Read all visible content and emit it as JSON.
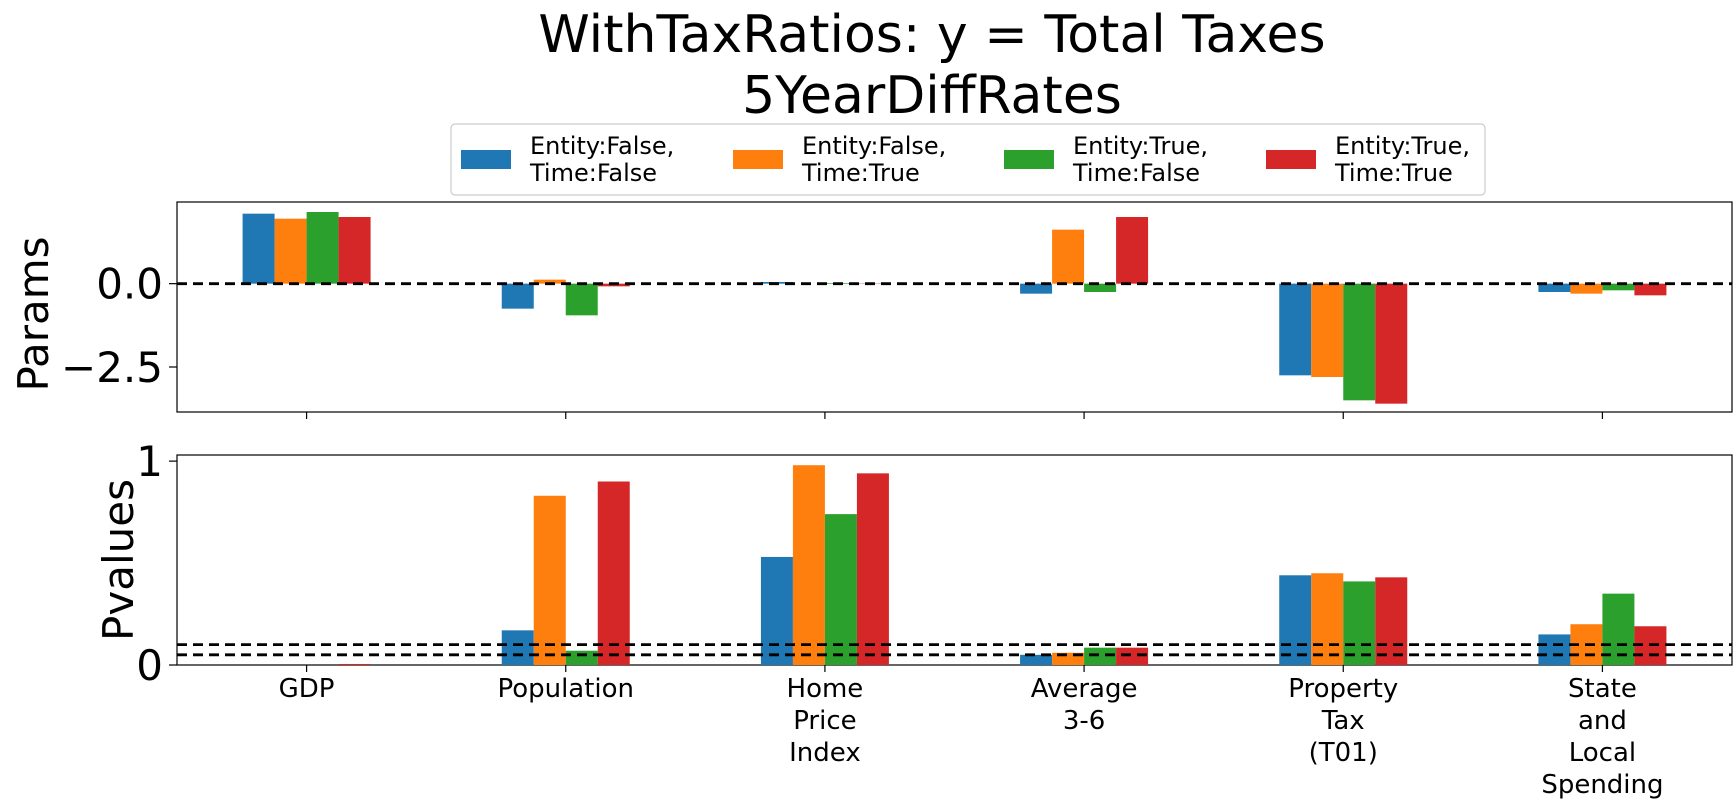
{
  "chart_data": {
    "title_line1": "WithTaxRatios: y = Total Taxes",
    "title_line2": "5YearDiffRates",
    "legend": [
      {
        "line1": "Entity:False,",
        "line2": "Time:False",
        "color": "#1f77b4"
      },
      {
        "line1": "Entity:False,",
        "line2": "Time:True",
        "color": "#ff7f0e"
      },
      {
        "line1": "Entity:True,",
        "line2": "Time:False",
        "color": "#2ca02c"
      },
      {
        "line1": "Entity:True,",
        "line2": "Time:True",
        "color": "#d62728"
      }
    ],
    "categories": [
      [
        "GDP"
      ],
      [
        "Population"
      ],
      [
        "Home",
        "Price",
        "Index"
      ],
      [
        "Average",
        "3-6"
      ],
      [
        "Property",
        "Tax",
        "(T01)"
      ],
      [
        "State",
        "and",
        "Local",
        "Spending"
      ]
    ],
    "params": {
      "type": "bar",
      "ylabel": "Params",
      "ylim": [
        -3.85,
        2.45
      ],
      "yticks": [
        {
          "value": 0.0,
          "label": "0.0"
        },
        {
          "value": -2.5,
          "label": "−2.5"
        }
      ],
      "hline": 0.0,
      "series": [
        {
          "name": "Entity:False, Time:False",
          "values": [
            2.1,
            -0.75,
            0.05,
            -0.3,
            -2.75,
            -0.25
          ]
        },
        {
          "name": "Entity:False, Time:True",
          "values": [
            1.95,
            0.12,
            0.0,
            1.62,
            -2.8,
            -0.3
          ]
        },
        {
          "name": "Entity:True, Time:False",
          "values": [
            2.15,
            -0.95,
            0.02,
            -0.25,
            -3.5,
            -0.2
          ]
        },
        {
          "name": "Entity:True, Time:True",
          "values": [
            2.0,
            -0.08,
            0.01,
            2.0,
            -3.6,
            -0.35
          ]
        }
      ]
    },
    "pvalues": {
      "type": "bar",
      "ylabel": "Pvalues",
      "ylim": [
        0,
        1.03
      ],
      "yticks": [
        {
          "value": 0,
          "label": "0"
        },
        {
          "value": 1,
          "label": "1"
        }
      ],
      "hlines": [
        0.05,
        0.1
      ],
      "series": [
        {
          "name": "Entity:False, Time:False",
          "values": [
            0.0,
            0.17,
            0.53,
            0.05,
            0.44,
            0.15
          ]
        },
        {
          "name": "Entity:False, Time:True",
          "values": [
            0.0,
            0.83,
            0.98,
            0.06,
            0.45,
            0.2
          ]
        },
        {
          "name": "Entity:True, Time:False",
          "values": [
            0.0,
            0.07,
            0.74,
            0.085,
            0.41,
            0.35
          ]
        },
        {
          "name": "Entity:True, Time:True",
          "values": [
            0.005,
            0.9,
            0.94,
            0.085,
            0.43,
            0.19
          ]
        }
      ]
    }
  }
}
